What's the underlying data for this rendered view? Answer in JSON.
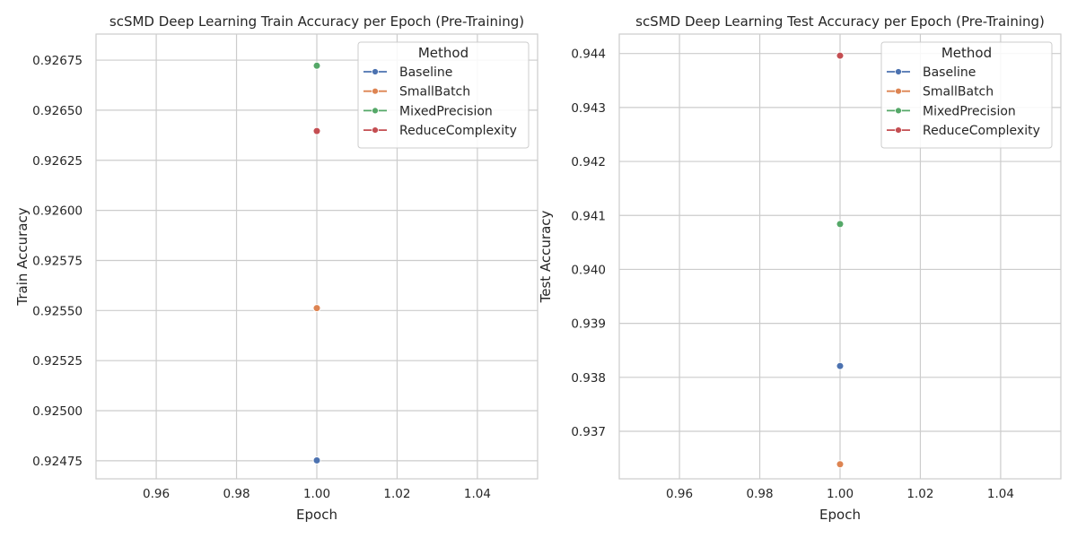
{
  "chart_data": [
    {
      "type": "scatter",
      "title": "scSMD Deep Learning Train Accuracy per Epoch (Pre-Training)",
      "xlabel": "Epoch",
      "ylabel": "Train Accuracy",
      "xlim": [
        0.945,
        1.055
      ],
      "ylim": [
        0.92466,
        0.92688
      ],
      "xticks": [
        0.96,
        0.98,
        1.0,
        1.02,
        1.04
      ],
      "xtick_labels": [
        "0.96",
        "0.98",
        "1.00",
        "1.02",
        "1.04"
      ],
      "yticks": [
        0.92475,
        0.925,
        0.92525,
        0.9255,
        0.92575,
        0.926,
        0.92625,
        0.9265,
        0.92675
      ],
      "ytick_labels": [
        "0.92475",
        "0.92500",
        "0.92525",
        "0.92550",
        "0.92575",
        "0.92600",
        "0.92625",
        "0.92650",
        "0.92675"
      ],
      "grid": true,
      "legend": {
        "title": "Method",
        "placement": "upper-right"
      },
      "series": [
        {
          "name": "Baseline",
          "color": "#4c72b0",
          "x": [
            1.0
          ],
          "y": [
            0.924752
          ]
        },
        {
          "name": "SmallBatch",
          "color": "#dd8452",
          "x": [
            1.0
          ],
          "y": [
            0.925512
          ]
        },
        {
          "name": "MixedPrecision",
          "color": "#55a868",
          "x": [
            1.0
          ],
          "y": [
            0.926722
          ]
        },
        {
          "name": "ReduceComplexity",
          "color": "#c44e52",
          "x": [
            1.0
          ],
          "y": [
            0.926396
          ]
        }
      ]
    },
    {
      "type": "scatter",
      "title": "scSMD Deep Learning Test Accuracy per Epoch (Pre-Training)",
      "xlabel": "Epoch",
      "ylabel": "Test Accuracy",
      "xlim": [
        0.945,
        1.055
      ],
      "ylim": [
        0.93612,
        0.94436
      ],
      "xticks": [
        0.96,
        0.98,
        1.0,
        1.02,
        1.04
      ],
      "xtick_labels": [
        "0.96",
        "0.98",
        "1.00",
        "1.02",
        "1.04"
      ],
      "yticks": [
        0.937,
        0.938,
        0.939,
        0.94,
        0.941,
        0.942,
        0.943,
        0.944
      ],
      "ytick_labels": [
        "0.937",
        "0.938",
        "0.939",
        "0.940",
        "0.941",
        "0.942",
        "0.943",
        "0.944"
      ],
      "grid": true,
      "legend": {
        "title": "Method",
        "placement": "upper-right"
      },
      "series": [
        {
          "name": "Baseline",
          "color": "#4c72b0",
          "x": [
            1.0
          ],
          "y": [
            0.93821
          ]
        },
        {
          "name": "SmallBatch",
          "color": "#dd8452",
          "x": [
            1.0
          ],
          "y": [
            0.93639
          ]
        },
        {
          "name": "MixedPrecision",
          "color": "#55a868",
          "x": [
            1.0
          ],
          "y": [
            0.94084
          ]
        },
        {
          "name": "ReduceComplexity",
          "color": "#c44e52",
          "x": [
            1.0
          ],
          "y": [
            0.94396
          ]
        }
      ]
    }
  ]
}
